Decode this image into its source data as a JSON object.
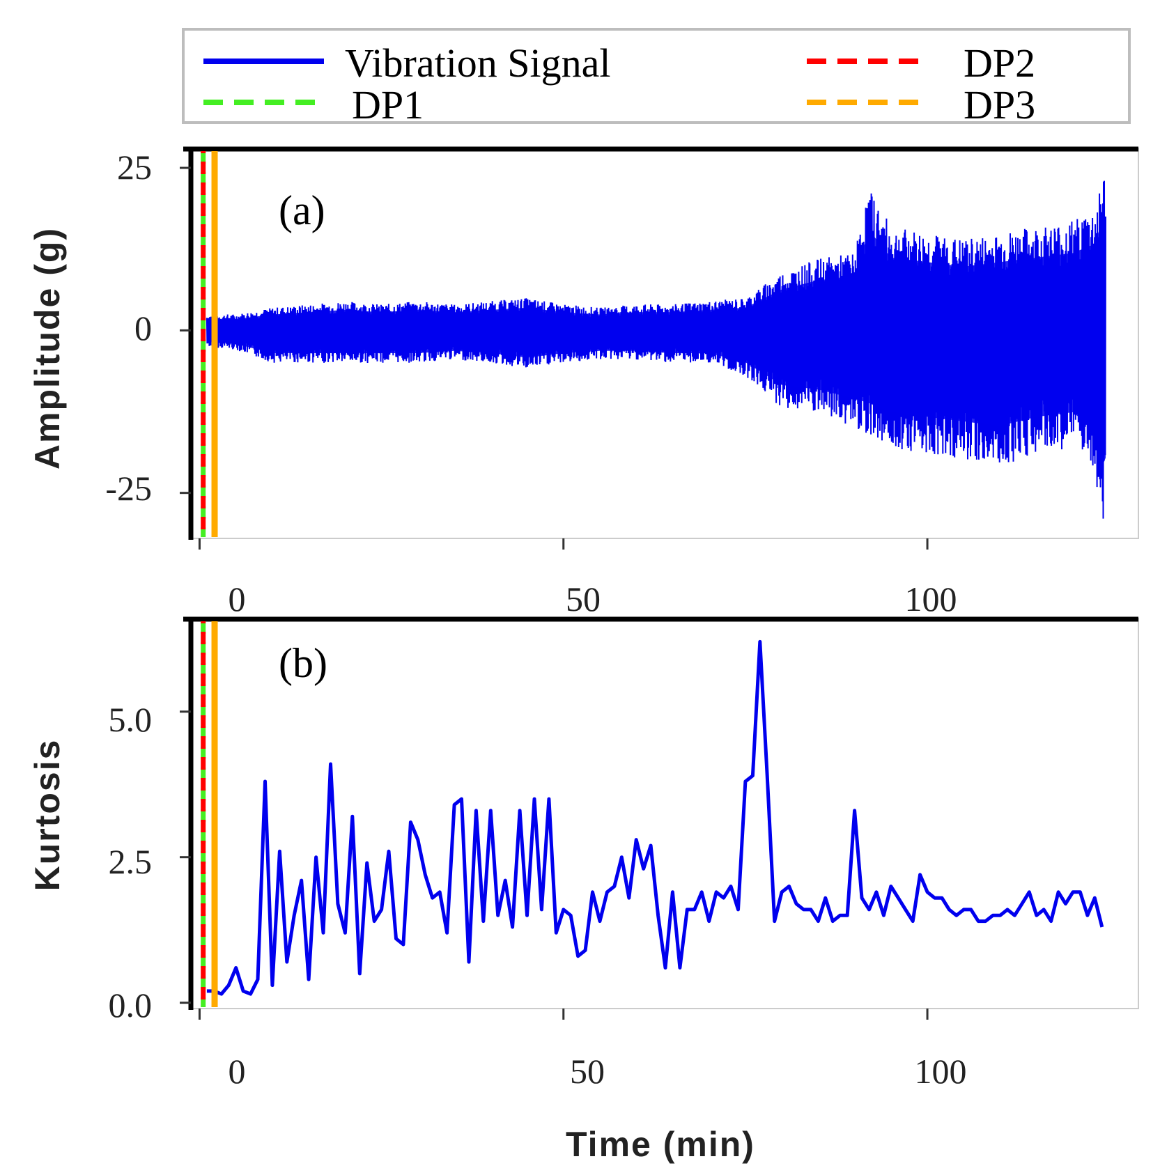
{
  "legend": {
    "entries": [
      {
        "label": "Vibration Signal",
        "color": "#0000ee",
        "dash": "solid"
      },
      {
        "label": "DP2",
        "color": "#ff0000",
        "dash": "dashed"
      },
      {
        "label": "DP1",
        "color": "#44ee22",
        "dash": "dashed"
      },
      {
        "label": "DP3",
        "color": "#ffaa00",
        "dash": "dashed"
      }
    ]
  },
  "chart_data": [
    {
      "type": "line",
      "panel_label": "(a)",
      "title": "",
      "xlabel": "",
      "ylabel": "Amplitude (g)",
      "xlim": [
        -1,
        129
      ],
      "ylim": [
        -32,
        28
      ],
      "xticks": [
        0,
        50,
        100
      ],
      "xtick_labels": [
        "0",
        "50",
        "100"
      ],
      "yticks": [
        -25,
        0,
        25
      ],
      "ytick_labels": [
        "-25",
        "0",
        "25"
      ],
      "vertical_markers": [
        {
          "name": "DP1",
          "x": 0.5,
          "color": "#44ee22"
        },
        {
          "name": "DP2",
          "x": 0.5,
          "color": "#ff0000"
        },
        {
          "name": "DP3",
          "x": 1.3,
          "color": "#ffaa00"
        }
      ],
      "series": [
        {
          "name": "Vibration Signal",
          "color": "#0000ee",
          "note": "dense oscillating signal, amplitude envelope per time",
          "envelope": {
            "x": [
              1,
              5,
              10,
              15,
              20,
              25,
              30,
              35,
              40,
              45,
              50,
              55,
              60,
              65,
              70,
              75,
              80,
              85,
              90,
              92,
              95,
              100,
              105,
              110,
              115,
              120,
              123,
              124,
              124.5
            ],
            "upper": [
              2.5,
              2.5,
              3.5,
              4,
              4.5,
              4,
              4.5,
              4,
              4.5,
              5,
              4,
              3.5,
              4,
              4,
              4.5,
              5,
              9,
              11,
              12,
              22,
              16,
              15,
              14,
              15,
              16,
              17,
              19,
              24,
              25
            ],
            "lower": [
              -2.5,
              -3,
              -5,
              -5,
              -5,
              -5,
              -5,
              -4.5,
              -5,
              -6,
              -5,
              -4.5,
              -4.5,
              -5,
              -5,
              -7,
              -12,
              -13,
              -15,
              -16,
              -18,
              -19,
              -20,
              -21,
              -19,
              -18,
              -22,
              -30,
              -28
            ]
          }
        }
      ]
    },
    {
      "type": "line",
      "panel_label": "(b)",
      "title": "",
      "xlabel": "Time (min)",
      "ylabel": "Kurtosis",
      "xlim": [
        -1,
        129
      ],
      "ylim": [
        -0.1,
        6.6
      ],
      "xticks": [
        0,
        50,
        100
      ],
      "xtick_labels": [
        "0",
        "50",
        "100"
      ],
      "yticks": [
        0.0,
        2.5,
        5.0
      ],
      "ytick_labels": [
        "0.0",
        "2.5",
        "5.0"
      ],
      "vertical_markers": [
        {
          "name": "DP1",
          "x": 0.5,
          "color": "#44ee22"
        },
        {
          "name": "DP2",
          "x": 0.5,
          "color": "#ff0000"
        },
        {
          "name": "DP3",
          "x": 1.3,
          "color": "#ffaa00"
        }
      ],
      "series": [
        {
          "name": "Kurtosis",
          "color": "#0000ee",
          "x": [
            1,
            2,
            3,
            4,
            5,
            6,
            7,
            8,
            9,
            10,
            11,
            12,
            13,
            14,
            15,
            16,
            17,
            18,
            19,
            20,
            21,
            22,
            23,
            24,
            25,
            26,
            27,
            28,
            29,
            30,
            31,
            32,
            33,
            34,
            35,
            36,
            37,
            38,
            39,
            40,
            41,
            42,
            43,
            44,
            45,
            46,
            47,
            48,
            49,
            50,
            51,
            52,
            53,
            54,
            55,
            56,
            57,
            58,
            59,
            60,
            61,
            62,
            63,
            64,
            65,
            66,
            67,
            68,
            69,
            70,
            71,
            72,
            73,
            74,
            75,
            76,
            77,
            78,
            79,
            80,
            81,
            82,
            83,
            84,
            85,
            86,
            87,
            88,
            89,
            90,
            91,
            92,
            93,
            94,
            95,
            96,
            97,
            98,
            99,
            100,
            101,
            102,
            103,
            104,
            105,
            106,
            107,
            108,
            109,
            110,
            111,
            112,
            113,
            114,
            115,
            116,
            117,
            118,
            119,
            120,
            121,
            122,
            123,
            124
          ],
          "y": [
            0.2,
            0.2,
            0.15,
            0.3,
            0.6,
            0.2,
            0.15,
            0.4,
            3.8,
            0.3,
            2.6,
            0.7,
            1.5,
            2.1,
            0.4,
            2.5,
            1.2,
            4.1,
            1.7,
            1.2,
            3.2,
            0.5,
            2.4,
            1.4,
            1.6,
            2.6,
            1.1,
            1.0,
            3.1,
            2.8,
            2.2,
            1.8,
            1.9,
            1.2,
            3.4,
            3.5,
            0.7,
            3.3,
            1.4,
            3.3,
            1.5,
            2.1,
            1.3,
            3.3,
            1.5,
            3.5,
            1.6,
            3.5,
            1.2,
            1.6,
            1.5,
            0.8,
            0.9,
            1.9,
            1.4,
            1.9,
            2.0,
            2.5,
            1.8,
            2.8,
            2.3,
            2.7,
            1.5,
            0.6,
            1.9,
            0.6,
            1.6,
            1.6,
            1.9,
            1.4,
            1.9,
            1.8,
            2.0,
            1.6,
            3.8,
            3.9,
            6.2,
            3.9,
            1.4,
            1.9,
            2.0,
            1.7,
            1.6,
            1.6,
            1.4,
            1.8,
            1.4,
            1.5,
            1.5,
            3.3,
            1.8,
            1.6,
            1.9,
            1.5,
            2.0,
            1.8,
            1.6,
            1.4,
            2.2,
            1.9,
            1.8,
            1.8,
            1.6,
            1.5,
            1.6,
            1.6,
            1.4,
            1.4,
            1.5,
            1.5,
            1.6,
            1.5,
            1.7,
            1.9,
            1.5,
            1.6,
            1.4,
            1.9,
            1.7,
            1.9,
            1.9,
            1.5,
            1.8,
            1.3
          ]
        }
      ]
    }
  ]
}
